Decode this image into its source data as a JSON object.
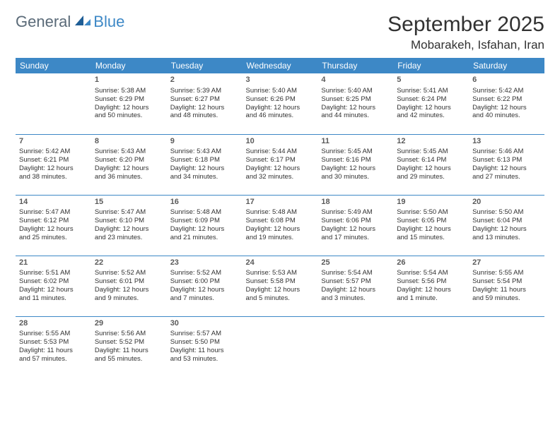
{
  "logo": {
    "part1": "General",
    "part2": "Blue"
  },
  "title": "September 2025",
  "location": "Mobarakeh, Isfahan, Iran",
  "colors": {
    "header_bg": "#3d88c6",
    "header_text": "#ffffff",
    "border": "#3d88c6",
    "body_text": "#323232",
    "logo_gray": "#5a6a78",
    "logo_blue": "#3d88c6",
    "background": "#ffffff"
  },
  "typography": {
    "title_fontsize": 30,
    "location_fontsize": 17,
    "header_fontsize": 12,
    "cell_fontsize": 9.5,
    "daynum_fontsize": 11
  },
  "days": [
    "Sunday",
    "Monday",
    "Tuesday",
    "Wednesday",
    "Thursday",
    "Friday",
    "Saturday"
  ],
  "weeks": [
    [
      null,
      {
        "n": "1",
        "sr": "Sunrise: 5:38 AM",
        "ss": "Sunset: 6:29 PM",
        "d1": "Daylight: 12 hours",
        "d2": "and 50 minutes."
      },
      {
        "n": "2",
        "sr": "Sunrise: 5:39 AM",
        "ss": "Sunset: 6:27 PM",
        "d1": "Daylight: 12 hours",
        "d2": "and 48 minutes."
      },
      {
        "n": "3",
        "sr": "Sunrise: 5:40 AM",
        "ss": "Sunset: 6:26 PM",
        "d1": "Daylight: 12 hours",
        "d2": "and 46 minutes."
      },
      {
        "n": "4",
        "sr": "Sunrise: 5:40 AM",
        "ss": "Sunset: 6:25 PM",
        "d1": "Daylight: 12 hours",
        "d2": "and 44 minutes."
      },
      {
        "n": "5",
        "sr": "Sunrise: 5:41 AM",
        "ss": "Sunset: 6:24 PM",
        "d1": "Daylight: 12 hours",
        "d2": "and 42 minutes."
      },
      {
        "n": "6",
        "sr": "Sunrise: 5:42 AM",
        "ss": "Sunset: 6:22 PM",
        "d1": "Daylight: 12 hours",
        "d2": "and 40 minutes."
      }
    ],
    [
      {
        "n": "7",
        "sr": "Sunrise: 5:42 AM",
        "ss": "Sunset: 6:21 PM",
        "d1": "Daylight: 12 hours",
        "d2": "and 38 minutes."
      },
      {
        "n": "8",
        "sr": "Sunrise: 5:43 AM",
        "ss": "Sunset: 6:20 PM",
        "d1": "Daylight: 12 hours",
        "d2": "and 36 minutes."
      },
      {
        "n": "9",
        "sr": "Sunrise: 5:43 AM",
        "ss": "Sunset: 6:18 PM",
        "d1": "Daylight: 12 hours",
        "d2": "and 34 minutes."
      },
      {
        "n": "10",
        "sr": "Sunrise: 5:44 AM",
        "ss": "Sunset: 6:17 PM",
        "d1": "Daylight: 12 hours",
        "d2": "and 32 minutes."
      },
      {
        "n": "11",
        "sr": "Sunrise: 5:45 AM",
        "ss": "Sunset: 6:16 PM",
        "d1": "Daylight: 12 hours",
        "d2": "and 30 minutes."
      },
      {
        "n": "12",
        "sr": "Sunrise: 5:45 AM",
        "ss": "Sunset: 6:14 PM",
        "d1": "Daylight: 12 hours",
        "d2": "and 29 minutes."
      },
      {
        "n": "13",
        "sr": "Sunrise: 5:46 AM",
        "ss": "Sunset: 6:13 PM",
        "d1": "Daylight: 12 hours",
        "d2": "and 27 minutes."
      }
    ],
    [
      {
        "n": "14",
        "sr": "Sunrise: 5:47 AM",
        "ss": "Sunset: 6:12 PM",
        "d1": "Daylight: 12 hours",
        "d2": "and 25 minutes."
      },
      {
        "n": "15",
        "sr": "Sunrise: 5:47 AM",
        "ss": "Sunset: 6:10 PM",
        "d1": "Daylight: 12 hours",
        "d2": "and 23 minutes."
      },
      {
        "n": "16",
        "sr": "Sunrise: 5:48 AM",
        "ss": "Sunset: 6:09 PM",
        "d1": "Daylight: 12 hours",
        "d2": "and 21 minutes."
      },
      {
        "n": "17",
        "sr": "Sunrise: 5:48 AM",
        "ss": "Sunset: 6:08 PM",
        "d1": "Daylight: 12 hours",
        "d2": "and 19 minutes."
      },
      {
        "n": "18",
        "sr": "Sunrise: 5:49 AM",
        "ss": "Sunset: 6:06 PM",
        "d1": "Daylight: 12 hours",
        "d2": "and 17 minutes."
      },
      {
        "n": "19",
        "sr": "Sunrise: 5:50 AM",
        "ss": "Sunset: 6:05 PM",
        "d1": "Daylight: 12 hours",
        "d2": "and 15 minutes."
      },
      {
        "n": "20",
        "sr": "Sunrise: 5:50 AM",
        "ss": "Sunset: 6:04 PM",
        "d1": "Daylight: 12 hours",
        "d2": "and 13 minutes."
      }
    ],
    [
      {
        "n": "21",
        "sr": "Sunrise: 5:51 AM",
        "ss": "Sunset: 6:02 PM",
        "d1": "Daylight: 12 hours",
        "d2": "and 11 minutes."
      },
      {
        "n": "22",
        "sr": "Sunrise: 5:52 AM",
        "ss": "Sunset: 6:01 PM",
        "d1": "Daylight: 12 hours",
        "d2": "and 9 minutes."
      },
      {
        "n": "23",
        "sr": "Sunrise: 5:52 AM",
        "ss": "Sunset: 6:00 PM",
        "d1": "Daylight: 12 hours",
        "d2": "and 7 minutes."
      },
      {
        "n": "24",
        "sr": "Sunrise: 5:53 AM",
        "ss": "Sunset: 5:58 PM",
        "d1": "Daylight: 12 hours",
        "d2": "and 5 minutes."
      },
      {
        "n": "25",
        "sr": "Sunrise: 5:54 AM",
        "ss": "Sunset: 5:57 PM",
        "d1": "Daylight: 12 hours",
        "d2": "and 3 minutes."
      },
      {
        "n": "26",
        "sr": "Sunrise: 5:54 AM",
        "ss": "Sunset: 5:56 PM",
        "d1": "Daylight: 12 hours",
        "d2": "and 1 minute."
      },
      {
        "n": "27",
        "sr": "Sunrise: 5:55 AM",
        "ss": "Sunset: 5:54 PM",
        "d1": "Daylight: 11 hours",
        "d2": "and 59 minutes."
      }
    ],
    [
      {
        "n": "28",
        "sr": "Sunrise: 5:55 AM",
        "ss": "Sunset: 5:53 PM",
        "d1": "Daylight: 11 hours",
        "d2": "and 57 minutes."
      },
      {
        "n": "29",
        "sr": "Sunrise: 5:56 AM",
        "ss": "Sunset: 5:52 PM",
        "d1": "Daylight: 11 hours",
        "d2": "and 55 minutes."
      },
      {
        "n": "30",
        "sr": "Sunrise: 5:57 AM",
        "ss": "Sunset: 5:50 PM",
        "d1": "Daylight: 11 hours",
        "d2": "and 53 minutes."
      },
      null,
      null,
      null,
      null
    ]
  ]
}
